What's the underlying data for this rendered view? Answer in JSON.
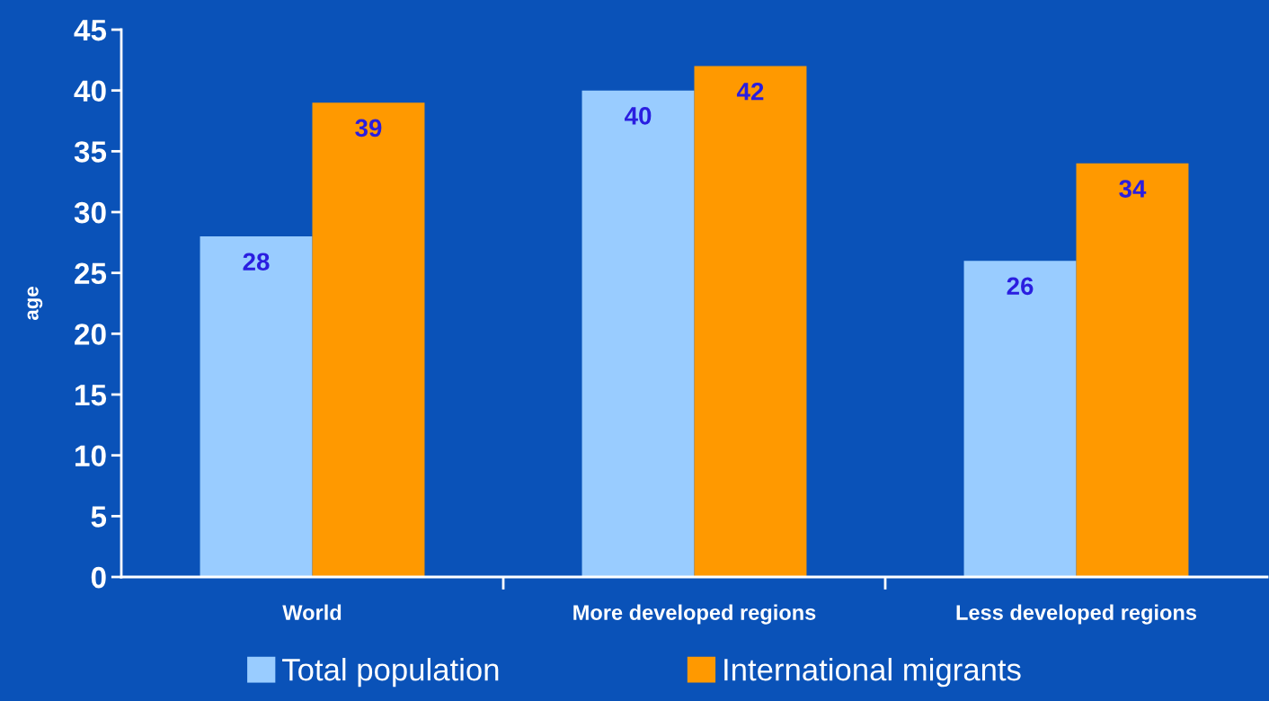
{
  "chart_data": {
    "type": "bar",
    "ylabel": "age",
    "categories": [
      "World",
      "More developed regions",
      "Less developed regions"
    ],
    "series": [
      {
        "name": "Total population",
        "color": "#99ccff",
        "values": [
          28,
          40,
          26
        ]
      },
      {
        "name": "International migrants",
        "color": "#ff9900",
        "values": [
          39,
          42,
          34
        ]
      }
    ],
    "ylim": [
      0,
      45
    ],
    "yticks": [
      0,
      5,
      10,
      15,
      20,
      25,
      30,
      35,
      40,
      45
    ],
    "grid": false,
    "legend": "bottom",
    "data_labels": true
  }
}
